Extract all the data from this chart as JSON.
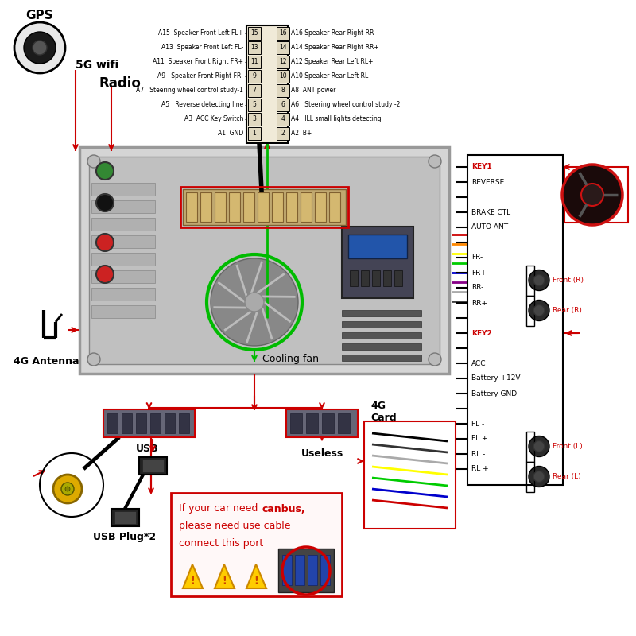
{
  "bg_color": "#ffffff",
  "pin_labels_left": [
    "A15  Speaker Front Left FL+",
    "A13  Speaker Front Left FL-",
    "A11  Speaker Front Right FR+",
    "A9   Speaker Front Right FR-",
    "A7   Steering wheel control study-1",
    "A5   Reverse detecting line",
    "A3  ACC Key Switch",
    "A1  GND"
  ],
  "pin_labels_right": [
    "A16 Speaker Rear Right RR-",
    "A14 Speaker Rear Right RR+",
    "A12 Speaker Rear Left RL+",
    "A10 Speaker Rear Left RL-",
    "A8  ANT power",
    "A6   Steering wheel control study -2",
    "A4   ILL small lights detecting",
    "A2  B+"
  ],
  "pin_numbers_left": [
    15,
    13,
    11,
    9,
    7,
    5,
    3,
    1
  ],
  "pin_numbers_right": [
    16,
    14,
    12,
    10,
    8,
    6,
    4,
    2
  ],
  "right_wire_labels": [
    "KEY1",
    "REVERSE",
    "",
    "BRAKE CTL",
    "AUTO ANT",
    "",
    "FR-",
    "FR+",
    "RR-",
    "RR+",
    "",
    "KEY2",
    "",
    "ACC",
    "Battery +12V",
    "Battery GND",
    "",
    "FL -",
    "FL +",
    "RL -",
    "RL +"
  ],
  "gps_label": "GPS",
  "wifi_label": "5G wifi",
  "radio_label": "Radio",
  "antenna_label": "4G Antenna",
  "cooling_fan_label": "Cooling fan",
  "usb_label": "USB",
  "usb_plug_label": "USB Plug*2",
  "useless_label": "Useless",
  "card_label": "4G\nCard",
  "front_r_label": "Front (R)",
  "rear_r_label": "Rear (R)",
  "front_l_label": "Front (L)",
  "rear_l_label": "Rear (L)",
  "red": "#cc0000",
  "green": "#00bb00",
  "black": "#000000",
  "device_fc": "#c8c8c8",
  "device_ec": "#888888",
  "heatsink_fc": "#aaaaaa",
  "connector_fc": "#c8a050",
  "pin_fc": "#f0ead8"
}
